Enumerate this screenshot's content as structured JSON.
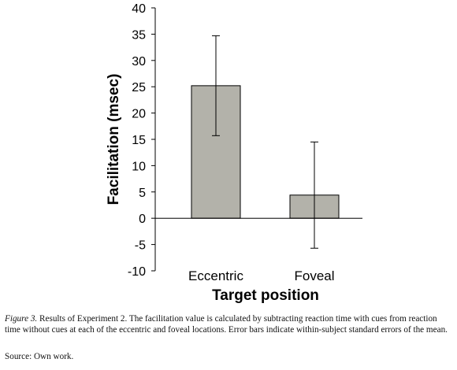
{
  "chart_data": {
    "type": "bar",
    "categories": [
      "Eccentric",
      "Foveal"
    ],
    "values": [
      25.2,
      4.4
    ],
    "error_bars": [
      9.5,
      10.1
    ],
    "ylim": [
      -10,
      40
    ],
    "yticks": [
      "-10",
      "-5",
      "0",
      "5",
      "10",
      "15",
      "20",
      "25",
      "30",
      "35",
      "40"
    ],
    "ylabel": "Facilitation (msec)",
    "xlabel": "Target position",
    "bar_color": "#b3b2aa",
    "grid": false
  },
  "caption": {
    "figure_label": "Figure 3.",
    "text": " Results of Experiment 2. The facilitation value is calculated by subtracting reaction time with cues from reaction time without cues at each of the eccentric and foveal locations. Error bars indicate within-subject standard errors of the mean.",
    "source": "Source: Own work."
  }
}
